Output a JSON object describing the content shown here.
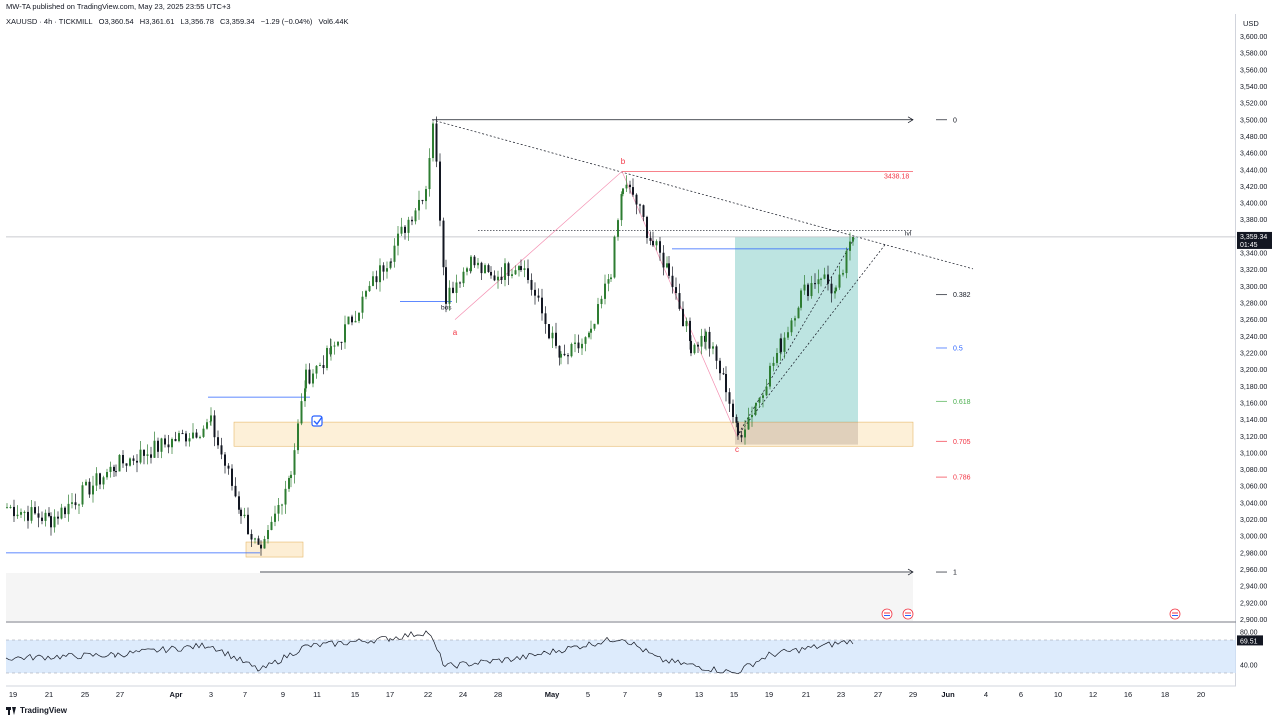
{
  "header": {
    "published": "MW-TA published on TradingView.com, May 23, 2025 23:55 UTC+3"
  },
  "legend": {
    "symbol": "XAUUSD · 4h · TICKMILL",
    "open": "O3,360.54",
    "high": "H3,361.61",
    "low": "L3,356.78",
    "close": "C3,359.34",
    "change": "−1.29 (−0.04%)",
    "volume": "Vol6.44K"
  },
  "footer": {
    "brand": "TradingView"
  },
  "colors": {
    "up": "#26a69a",
    "up_body": "#2e7d32",
    "down": "#131722",
    "target_zone": "#26a69a",
    "demand_zone": "#fbe3b8",
    "blue_line": "#2962ff",
    "red_label": "#f23645",
    "rsi_band": "#cfe3fb"
  },
  "chart_data": [
    {
      "type": "line",
      "title": "",
      "ylabel": "USD",
      "yunit": "USD",
      "ylim": [
        2900,
        3620
      ],
      "yticks": [
        3600,
        3580,
        3560,
        3540,
        3520,
        3500,
        3480,
        3460,
        3440,
        3420,
        3400,
        3380,
        3360,
        3340,
        3320,
        3300,
        3280,
        3260,
        3240,
        3220,
        3200,
        3180,
        3160,
        3140,
        3120,
        3100,
        3080,
        3060,
        3040,
        3020,
        3000,
        2980,
        2960,
        2940,
        2920,
        2900
      ],
      "xticks": [
        "19",
        "21",
        "25",
        "27",
        "Apr",
        "3",
        "7",
        "9",
        "11",
        "15",
        "17",
        "22",
        "24",
        "28",
        "May",
        "5",
        "7",
        "9",
        "13",
        "15",
        "19",
        "21",
        "23",
        "27",
        "29",
        "Jun",
        "4",
        "6",
        "10",
        "12",
        "16",
        "18",
        "20"
      ],
      "last_price": "3,359.34",
      "countdown": "01:45",
      "series": [
        {
          "name": "",
          "x": [
            "Mar 19",
            "Mar 24",
            "Mar 28",
            "Apr 3",
            "Apr 7",
            "Apr 8",
            "Apr 10",
            "Apr 11",
            "Apr 14",
            "Apr 17",
            "Apr 21",
            "Apr 22",
            "Apr 23",
            "Apr 24",
            "Apr 25",
            "Apr 28",
            "May 1",
            "May 2",
            "May 5",
            "May 6",
            "May 7",
            "May 8",
            "May 9",
            "May 12",
            "May 13",
            "May 14",
            "May 15",
            "May 16",
            "May 19",
            "May 20",
            "May 21",
            "May 22",
            "May 23"
          ],
          "values": [
            3035,
            3020,
            3085,
            3135,
            3030,
            2975,
            3080,
            3190,
            3220,
            3340,
            3420,
            3500,
            3290,
            3330,
            3310,
            3330,
            3210,
            3240,
            3320,
            3420,
            3410,
            3350,
            3320,
            3230,
            3240,
            3180,
            3120,
            3160,
            3230,
            3290,
            3315,
            3290,
            3359.34
          ]
        }
      ],
      "annotations": {
        "fib_levels": [
          {
            "label": "0",
            "price": 3500
          },
          {
            "label": "0.382",
            "price": 3290
          },
          {
            "label": "0.5",
            "price": 3226
          },
          {
            "label": "0.618",
            "price": 3162
          },
          {
            "label": "0.705",
            "price": 3114
          },
          {
            "label": "0.786",
            "price": 3071
          },
          {
            "label": "1",
            "price": 2957
          }
        ],
        "price_label": {
          "text": "3438.18",
          "price": 3438.18
        },
        "wave_labels": [
          "a",
          "b",
          "c"
        ],
        "text_marks": [
          "bos",
          "lvl"
        ]
      }
    },
    {
      "type": "line",
      "title": "",
      "ylim": [
        30,
        90
      ],
      "yticks": [
        80,
        40
      ],
      "band": [
        70,
        30
      ],
      "last_value": "69.51",
      "series": [
        {
          "name": "",
          "x": [
            "Mar 19",
            "Mar 28",
            "Apr 3",
            "Apr 8",
            "Apr 11",
            "Apr 17",
            "Apr 22",
            "Apr 24",
            "May 1",
            "May 7",
            "May 9",
            "May 15",
            "May 19",
            "May 23"
          ],
          "values": [
            48,
            52,
            64,
            33,
            62,
            72,
            80,
            38,
            48,
            73,
            46,
            30,
            52,
            69.51
          ]
        }
      ]
    }
  ]
}
